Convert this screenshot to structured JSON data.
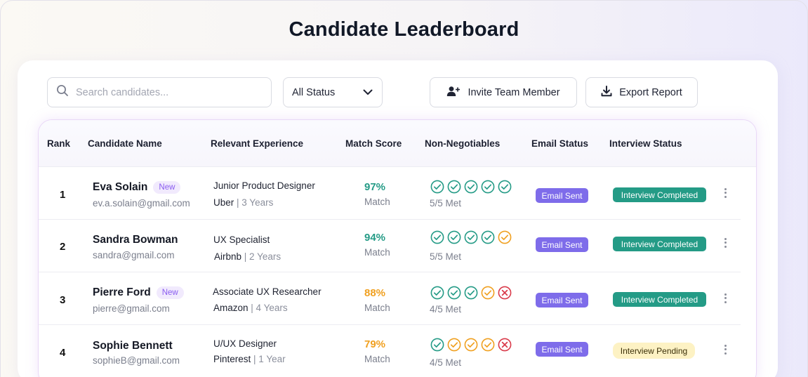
{
  "title": "Candidate Leaderboard",
  "toolbar": {
    "search_placeholder": "Search candidates...",
    "status_filter": "All Status",
    "invite_label": "Invite Team Member",
    "export_label": "Export Report"
  },
  "colors": {
    "green": "#249b86",
    "orange": "#f0a020",
    "red": "#d93a4a",
    "purple": "#7e6cea"
  },
  "table": {
    "headers": [
      "Rank",
      "Candidate Name",
      "Relevant Experience",
      "Match Score",
      "Non-Negotiables",
      "Email Status",
      "Interview Status"
    ],
    "rows": [
      {
        "rank": "1",
        "name": "Eva Solain",
        "badge": "New",
        "email": "ev.a.solain@gmail.com",
        "role": "Junior Product Designer",
        "company": "Uber",
        "years": "| 3 Years",
        "score": "97%",
        "score_label": "Match",
        "met": "5/5 Met",
        "checks": [
          "green",
          "green",
          "green",
          "green",
          "green"
        ],
        "email_status": "Email Sent",
        "interview_status": "Interview Completed",
        "interview_state": "done"
      },
      {
        "rank": "2",
        "name": "Sandra Bowman",
        "badge": "",
        "email": "sandra@gmail.com",
        "role": "UX Specialist",
        "company": "Airbnb",
        "years": "| 2 Years",
        "score": "94%",
        "score_label": "Match",
        "met": "5/5 Met",
        "checks": [
          "green",
          "green",
          "green",
          "green",
          "orange"
        ],
        "email_status": "Email Sent",
        "interview_status": "Interview Completed",
        "interview_state": "done"
      },
      {
        "rank": "3",
        "name": "Pierre Ford",
        "badge": "New",
        "email": "pierre@gmail.com",
        "role": "Associate UX Researcher",
        "company": "Amazon",
        "years": "| 4 Years",
        "score": "88%",
        "score_label": "Match",
        "met": "4/5 Met",
        "checks": [
          "green",
          "green",
          "green",
          "orange",
          "red"
        ],
        "email_status": "Email Sent",
        "interview_status": "Interview Completed",
        "interview_state": "done"
      },
      {
        "rank": "4",
        "name": "Sophie Bennett",
        "badge": "",
        "email": "sophieB@gmail.com",
        "role": "U/UX Designer",
        "company": "Pinterest",
        "years": "| 1 Year",
        "score": "79%",
        "score_label": "Match",
        "met": "4/5 Met",
        "checks": [
          "green",
          "orange",
          "orange",
          "orange",
          "red"
        ],
        "email_status": "Email Sent",
        "interview_status": "Interview Pending",
        "interview_state": "pending"
      }
    ]
  }
}
